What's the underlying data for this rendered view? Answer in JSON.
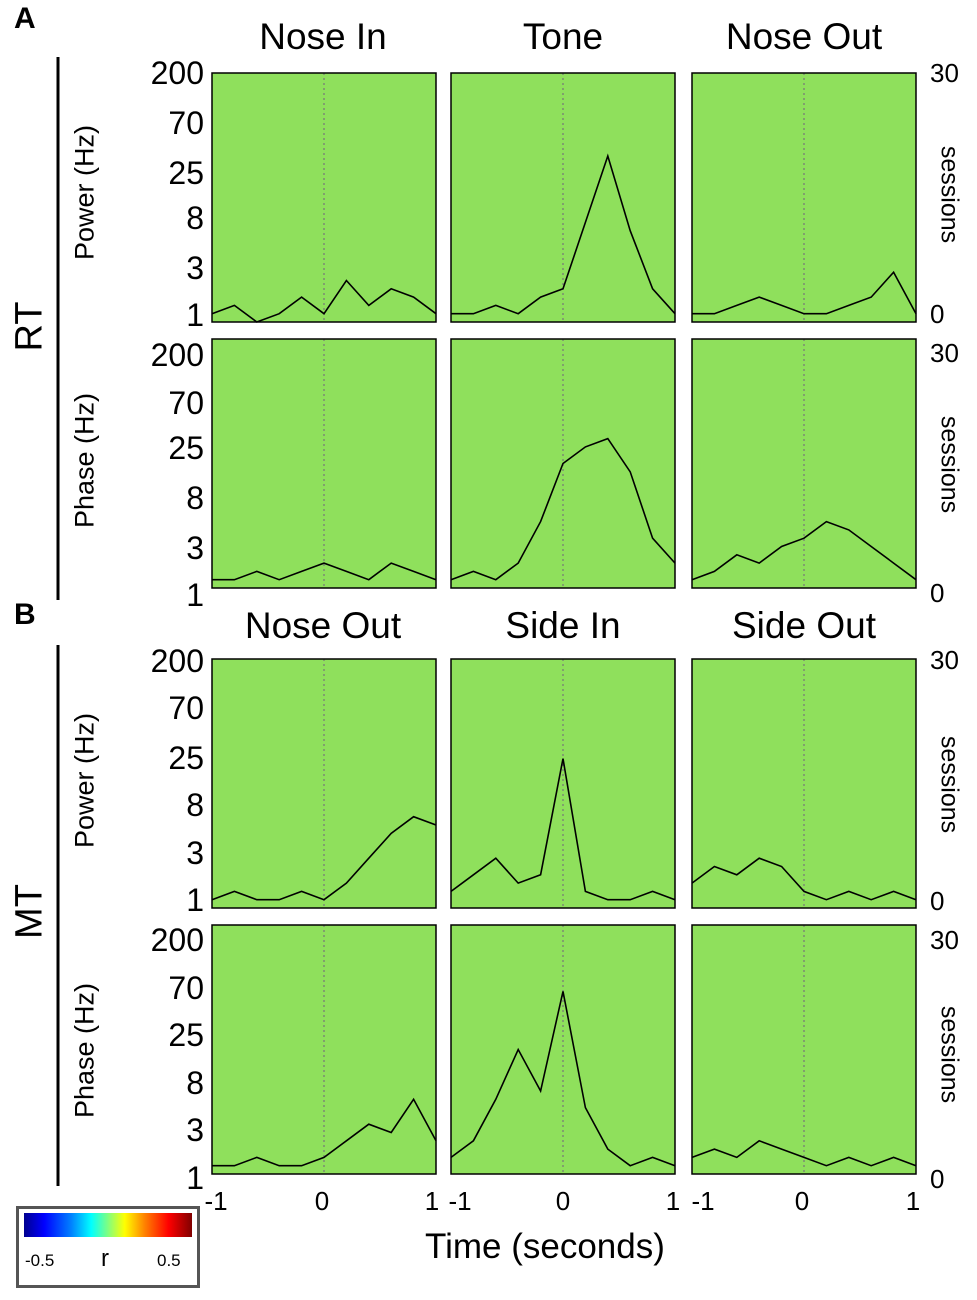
{
  "labels": {
    "panel_a": "A",
    "panel_b": "B",
    "group_rt": "RT",
    "group_mt": "MT",
    "power_label": "Power (Hz)",
    "phase_label": "Phase (Hz)",
    "sessions_label": "sessions",
    "x_axis_label": "Time (seconds)",
    "colorbar": {
      "min": "-0.5",
      "symbol": "r",
      "max": "0.5"
    }
  },
  "columns": {
    "rt": [
      "Nose In",
      "Tone",
      "Nose Out"
    ],
    "mt": [
      "Nose Out",
      "Side In",
      "Side Out"
    ]
  },
  "y_ticks_hz": [
    "200",
    "70",
    "25",
    "8",
    "3",
    "1"
  ],
  "sessions_ticks": {
    "top": "30",
    "bottom": "0"
  },
  "x_ticks": [
    "-1",
    "0",
    "1"
  ],
  "colors": {
    "bg": "#8fe05c",
    "line": "#000000"
  },
  "chart_data": [
    {
      "type": "heatmap",
      "group": "RT",
      "row": "Power",
      "event": "Nose In",
      "xlim": [
        -1,
        1
      ],
      "ylim_hz": [
        1,
        200
      ],
      "sessions_range": [
        0,
        30
      ],
      "clim": [
        -0.5,
        0.5
      ],
      "sessions_x": [
        -1.0,
        -0.8,
        -0.6,
        -0.4,
        -0.2,
        0.0,
        0.2,
        0.4,
        0.6,
        0.8,
        1.0
      ],
      "sessions_y": [
        1,
        2,
        0,
        1,
        3,
        1,
        5,
        2,
        4,
        3,
        1
      ]
    },
    {
      "type": "heatmap",
      "group": "RT",
      "row": "Power",
      "event": "Tone",
      "xlim": [
        -1,
        1
      ],
      "ylim_hz": [
        1,
        200
      ],
      "sessions_range": [
        0,
        30
      ],
      "clim": [
        -0.5,
        0.5
      ],
      "sessions_x": [
        -1.0,
        -0.8,
        -0.6,
        -0.4,
        -0.2,
        0.0,
        0.2,
        0.4,
        0.6,
        0.8,
        1.0
      ],
      "sessions_y": [
        1,
        1,
        2,
        1,
        3,
        4,
        12,
        20,
        11,
        4,
        1
      ]
    },
    {
      "type": "heatmap",
      "group": "RT",
      "row": "Power",
      "event": "Nose Out",
      "xlim": [
        -1,
        1
      ],
      "ylim_hz": [
        1,
        200
      ],
      "sessions_range": [
        0,
        30
      ],
      "clim": [
        -0.5,
        0.5
      ],
      "sessions_x": [
        -1.0,
        -0.8,
        -0.6,
        -0.4,
        -0.2,
        0.0,
        0.2,
        0.4,
        0.6,
        0.8,
        1.0
      ],
      "sessions_y": [
        1,
        1,
        2,
        3,
        2,
        1,
        1,
        2,
        3,
        6,
        1
      ]
    },
    {
      "type": "heatmap",
      "group": "RT",
      "row": "Phase",
      "event": "Nose In",
      "xlim": [
        -1,
        1
      ],
      "ylim_hz": [
        1,
        200
      ],
      "sessions_range": [
        0,
        30
      ],
      "clim": [
        -0.5,
        0.5
      ],
      "sessions_x": [
        -1.0,
        -0.8,
        -0.6,
        -0.4,
        -0.2,
        0.0,
        0.2,
        0.4,
        0.6,
        0.8,
        1.0
      ],
      "sessions_y": [
        1,
        1,
        2,
        1,
        2,
        3,
        2,
        1,
        3,
        2,
        1
      ]
    },
    {
      "type": "heatmap",
      "group": "RT",
      "row": "Phase",
      "event": "Tone",
      "xlim": [
        -1,
        1
      ],
      "ylim_hz": [
        1,
        200
      ],
      "sessions_range": [
        0,
        30
      ],
      "clim": [
        -0.5,
        0.5
      ],
      "sessions_x": [
        -1.0,
        -0.8,
        -0.6,
        -0.4,
        -0.2,
        0.0,
        0.2,
        0.4,
        0.6,
        0.8,
        1.0
      ],
      "sessions_y": [
        1,
        2,
        1,
        3,
        8,
        15,
        17,
        18,
        14,
        6,
        3
      ]
    },
    {
      "type": "heatmap",
      "group": "RT",
      "row": "Phase",
      "event": "Nose Out",
      "xlim": [
        -1,
        1
      ],
      "ylim_hz": [
        1,
        200
      ],
      "sessions_range": [
        0,
        30
      ],
      "clim": [
        -0.5,
        0.5
      ],
      "sessions_x": [
        -1.0,
        -0.8,
        -0.6,
        -0.4,
        -0.2,
        0.0,
        0.2,
        0.4,
        0.6,
        0.8,
        1.0
      ],
      "sessions_y": [
        1,
        2,
        4,
        3,
        5,
        6,
        8,
        7,
        5,
        3,
        1
      ]
    },
    {
      "type": "heatmap",
      "group": "MT",
      "row": "Power",
      "event": "Nose Out",
      "xlim": [
        -1,
        1
      ],
      "ylim_hz": [
        1,
        200
      ],
      "sessions_range": [
        0,
        30
      ],
      "clim": [
        -0.5,
        0.5
      ],
      "sessions_x": [
        -1.0,
        -0.8,
        -0.6,
        -0.4,
        -0.2,
        0.0,
        0.2,
        0.4,
        0.6,
        0.8,
        1.0
      ],
      "sessions_y": [
        1,
        2,
        1,
        1,
        2,
        1,
        3,
        6,
        9,
        11,
        10
      ]
    },
    {
      "type": "heatmap",
      "group": "MT",
      "row": "Power",
      "event": "Side In",
      "xlim": [
        -1,
        1
      ],
      "ylim_hz": [
        1,
        200
      ],
      "sessions_range": [
        0,
        30
      ],
      "clim": [
        -0.5,
        0.5
      ],
      "sessions_x": [
        -1.0,
        -0.8,
        -0.6,
        -0.4,
        -0.2,
        0.0,
        0.2,
        0.4,
        0.6,
        0.8,
        1.0
      ],
      "sessions_y": [
        2,
        4,
        6,
        3,
        4,
        18,
        2,
        1,
        1,
        2,
        1
      ]
    },
    {
      "type": "heatmap",
      "group": "MT",
      "row": "Power",
      "event": "Side Out",
      "xlim": [
        -1,
        1
      ],
      "ylim_hz": [
        1,
        200
      ],
      "sessions_range": [
        0,
        30
      ],
      "clim": [
        -0.5,
        0.5
      ],
      "sessions_x": [
        -1.0,
        -0.8,
        -0.6,
        -0.4,
        -0.2,
        0.0,
        0.2,
        0.4,
        0.6,
        0.8,
        1.0
      ],
      "sessions_y": [
        3,
        5,
        4,
        6,
        5,
        2,
        1,
        2,
        1,
        2,
        1
      ]
    },
    {
      "type": "heatmap",
      "group": "MT",
      "row": "Phase",
      "event": "Nose Out",
      "xlim": [
        -1,
        1
      ],
      "ylim_hz": [
        1,
        200
      ],
      "sessions_range": [
        0,
        30
      ],
      "clim": [
        -0.5,
        0.5
      ],
      "sessions_x": [
        -1.0,
        -0.8,
        -0.6,
        -0.4,
        -0.2,
        0.0,
        0.2,
        0.4,
        0.6,
        0.8,
        1.0
      ],
      "sessions_y": [
        1,
        1,
        2,
        1,
        1,
        2,
        4,
        6,
        5,
        9,
        4
      ]
    },
    {
      "type": "heatmap",
      "group": "MT",
      "row": "Phase",
      "event": "Side In",
      "xlim": [
        -1,
        1
      ],
      "ylim_hz": [
        1,
        200
      ],
      "sessions_range": [
        0,
        30
      ],
      "clim": [
        -0.5,
        0.5
      ],
      "sessions_x": [
        -1.0,
        -0.8,
        -0.6,
        -0.4,
        -0.2,
        0.0,
        0.2,
        0.4,
        0.6,
        0.8,
        1.0
      ],
      "sessions_y": [
        2,
        4,
        9,
        15,
        10,
        22,
        8,
        3,
        1,
        2,
        1
      ]
    },
    {
      "type": "heatmap",
      "group": "MT",
      "row": "Phase",
      "event": "Side Out",
      "xlim": [
        -1,
        1
      ],
      "ylim_hz": [
        1,
        200
      ],
      "sessions_range": [
        0,
        30
      ],
      "clim": [
        -0.5,
        0.5
      ],
      "sessions_x": [
        -1.0,
        -0.8,
        -0.6,
        -0.4,
        -0.2,
        0.0,
        0.2,
        0.4,
        0.6,
        0.8,
        1.0
      ],
      "sessions_y": [
        2,
        3,
        2,
        4,
        3,
        2,
        1,
        2,
        1,
        2,
        1
      ]
    }
  ]
}
